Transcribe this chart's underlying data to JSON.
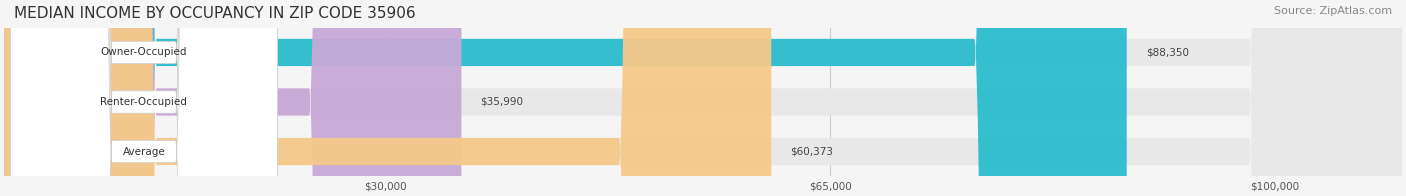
{
  "title": "MEDIAN INCOME BY OCCUPANCY IN ZIP CODE 35906",
  "source": "Source: ZipAtlas.com",
  "categories": [
    "Owner-Occupied",
    "Renter-Occupied",
    "Average"
  ],
  "values": [
    88350,
    35990,
    60373
  ],
  "bar_colors": [
    "#2bbccc",
    "#c8a8d8",
    "#f5c98a"
  ],
  "label_colors": [
    "#2bbccc",
    "#c8a8d8",
    "#f5c98a"
  ],
  "value_labels": [
    "$88,350",
    "$35,990",
    "$60,373"
  ],
  "xmax": 110000,
  "xticks": [
    0,
    30000,
    65000,
    100000
  ],
  "xtick_labels": [
    "",
    "$30,000",
    "$65,000",
    "$100,000"
  ],
  "bg_color": "#f5f5f5",
  "bar_bg_color": "#e8e8e8",
  "title_fontsize": 11,
  "source_fontsize": 8,
  "bar_height": 0.55,
  "figwidth": 14.06,
  "figheight": 1.96,
  "dpi": 100
}
